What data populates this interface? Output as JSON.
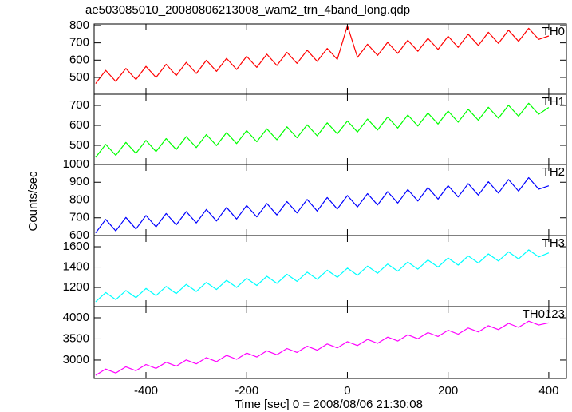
{
  "chart_data": [
    {
      "type": "line",
      "title": "ae503085010_20080806213008_wam2_trn_4band_long.qdp",
      "x": [
        -500,
        -480,
        -460,
        -440,
        -420,
        -400,
        -380,
        -360,
        -340,
        -320,
        -300,
        -280,
        -260,
        -240,
        -220,
        -200,
        -180,
        -160,
        -140,
        -120,
        -100,
        -80,
        -60,
        -40,
        -20,
        0,
        20,
        40,
        60,
        80,
        100,
        120,
        140,
        160,
        180,
        200,
        220,
        240,
        260,
        280,
        300,
        320,
        340,
        360,
        380,
        400
      ],
      "xlim": [
        -503,
        435
      ],
      "series": [
        {
          "name": "TH0",
          "color": "#ff0000",
          "values": [
            465,
            541,
            477,
            552,
            488,
            564,
            500,
            576,
            511,
            587,
            523,
            599,
            535,
            610,
            546,
            622,
            558,
            634,
            569,
            645,
            581,
            657,
            593,
            668,
            604,
            800,
            616,
            692,
            627,
            703,
            639,
            715,
            651,
            726,
            662,
            738,
            674,
            750,
            685,
            761,
            697,
            773,
            709,
            784,
            720,
            740
          ]
        }
      ],
      "ylim": [
        403,
        809
      ],
      "yticks": [
        500,
        600,
        700,
        800
      ]
    },
    {
      "type": "line",
      "x": [
        -500,
        -480,
        -460,
        -440,
        -420,
        -400,
        -380,
        -360,
        -340,
        -320,
        -300,
        -280,
        -260,
        -240,
        -220,
        -200,
        -180,
        -160,
        -140,
        -120,
        -100,
        -80,
        -60,
        -40,
        -20,
        0,
        20,
        40,
        60,
        80,
        100,
        120,
        140,
        160,
        180,
        200,
        220,
        240,
        260,
        280,
        300,
        320,
        340,
        360,
        380,
        400
      ],
      "xlim": [
        -503,
        435
      ],
      "series": [
        {
          "name": "TH1",
          "color": "#00ff00",
          "values": [
            440,
            505,
            450,
            515,
            460,
            525,
            469,
            534,
            479,
            544,
            489,
            554,
            499,
            564,
            509,
            574,
            518,
            583,
            528,
            593,
            538,
            603,
            548,
            613,
            558,
            622,
            567,
            632,
            577,
            642,
            587,
            652,
            597,
            662,
            607,
            672,
            616,
            681,
            626,
            691,
            636,
            701,
            646,
            711,
            656,
            690
          ]
        }
      ],
      "ylim": [
        404,
        756
      ],
      "yticks": [
        500,
        600,
        700
      ]
    },
    {
      "type": "line",
      "ylabel": "Counts/sec",
      "x": [
        -500,
        -480,
        -460,
        -440,
        -420,
        -400,
        -380,
        -360,
        -340,
        -320,
        -300,
        -280,
        -260,
        -240,
        -220,
        -200,
        -180,
        -160,
        -140,
        -120,
        -100,
        -80,
        -60,
        -40,
        -20,
        0,
        20,
        40,
        60,
        80,
        100,
        120,
        140,
        160,
        180,
        200,
        220,
        240,
        260,
        280,
        300,
        320,
        340,
        360,
        380,
        400
      ],
      "xlim": [
        -503,
        435
      ],
      "series": [
        {
          "name": "TH2",
          "color": "#0000ff",
          "values": [
            615,
            691,
            626,
            702,
            637,
            713,
            649,
            724,
            660,
            735,
            671,
            747,
            682,
            758,
            693,
            769,
            705,
            780,
            716,
            791,
            727,
            803,
            738,
            814,
            749,
            825,
            761,
            836,
            772,
            847,
            783,
            859,
            794,
            870,
            805,
            881,
            817,
            892,
            828,
            903,
            839,
            915,
            850,
            926,
            861,
            880
          ]
        }
      ],
      "ylim": [
        600,
        1000
      ],
      "yticks": [
        600,
        700,
        800,
        900,
        1000
      ]
    },
    {
      "type": "line",
      "x": [
        -500,
        -480,
        -460,
        -440,
        -420,
        -400,
        -380,
        -360,
        -340,
        -320,
        -300,
        -280,
        -260,
        -240,
        -220,
        -200,
        -180,
        -160,
        -140,
        -120,
        -100,
        -80,
        -60,
        -40,
        -20,
        0,
        20,
        40,
        60,
        80,
        100,
        120,
        140,
        160,
        180,
        200,
        220,
        240,
        260,
        280,
        300,
        320,
        340,
        360,
        380,
        400
      ],
      "xlim": [
        -503,
        435
      ],
      "series": [
        {
          "name": "TH3",
          "color": "#00ffff",
          "values": [
            1060,
            1150,
            1080,
            1170,
            1100,
            1190,
            1120,
            1210,
            1140,
            1230,
            1160,
            1250,
            1180,
            1270,
            1200,
            1290,
            1220,
            1310,
            1240,
            1330,
            1260,
            1350,
            1280,
            1370,
            1300,
            1390,
            1320,
            1410,
            1340,
            1430,
            1360,
            1450,
            1380,
            1470,
            1400,
            1490,
            1420,
            1510,
            1440,
            1530,
            1460,
            1550,
            1480,
            1570,
            1500,
            1540
          ]
        }
      ],
      "ylim": [
        1012,
        1710
      ],
      "yticks": [
        1200,
        1400,
        1600
      ]
    },
    {
      "type": "line",
      "xlabel": "Time [sec] 0 = 2008/08/06 21:30:08",
      "x": [
        -500,
        -480,
        -460,
        -440,
        -420,
        -400,
        -380,
        -360,
        -340,
        -320,
        -300,
        -280,
        -260,
        -240,
        -220,
        -200,
        -180,
        -160,
        -140,
        -120,
        -100,
        -80,
        -60,
        -40,
        -20,
        0,
        20,
        40,
        60,
        80,
        100,
        120,
        140,
        160,
        180,
        200,
        220,
        240,
        260,
        280,
        300,
        320,
        340,
        360,
        380,
        400
      ],
      "xlim": [
        -503,
        435
      ],
      "xticks": [
        -400,
        -200,
        0,
        200,
        400
      ],
      "series": [
        {
          "name": "TH0123",
          "color": "#ff00ff",
          "values": [
            2640,
            2787,
            2694,
            2841,
            2748,
            2895,
            2802,
            2949,
            2856,
            3003,
            2910,
            3057,
            2964,
            3111,
            3018,
            3165,
            3072,
            3219,
            3126,
            3273,
            3180,
            3327,
            3234,
            3381,
            3288,
            3435,
            3342,
            3489,
            3396,
            3543,
            3450,
            3597,
            3504,
            3651,
            3558,
            3705,
            3612,
            3759,
            3666,
            3813,
            3720,
            3867,
            3774,
            3921,
            3828,
            3880
          ]
        }
      ],
      "ylim": [
        2565,
        4264
      ],
      "yticks": [
        3000,
        3500,
        4000
      ]
    }
  ]
}
